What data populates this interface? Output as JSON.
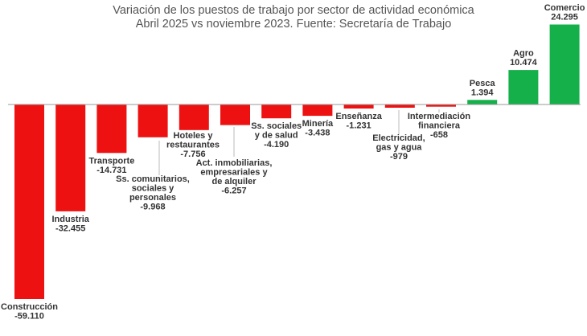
{
  "chart_data": {
    "type": "bar",
    "title": "Variación de los puestos de trabajo por sector de actividad económica",
    "subtitle": "Abril 2025 vs noviembre 2023. Fuente: Secretaría de Trabajo",
    "categories": [
      "Construcción",
      "Industria",
      "Transporte",
      "Ss. comunitarios, sociales y personales",
      "Hoteles y restaurantes",
      "Act. inmobiliarias, empresariales y de alquiler",
      "Ss. sociales y de salud",
      "Minería",
      "Enseñanza",
      "Electricidad, gas y agua",
      "Intermediación financiera",
      "Pesca",
      "Agro",
      "Comercio"
    ],
    "values": [
      -59110,
      -32455,
      -14731,
      -9968,
      -7756,
      -6257,
      -4190,
      -3438,
      -1231,
      -979,
      -658,
      1394,
      10474,
      24295
    ],
    "value_labels": [
      "-59.110",
      "-32.455",
      "-14.731",
      "-9.968",
      "-7.756",
      "-6.257",
      "-4.190",
      "-3.438",
      "-1.231",
      "-979",
      "-658",
      "1.394",
      "10.474",
      "24.295"
    ],
    "label_lines": [
      [
        "Construcción"
      ],
      [
        "Industria"
      ],
      [
        "Transporte"
      ],
      [
        "Ss. comunitarios,",
        "sociales y",
        "personales"
      ],
      [
        "Hoteles y",
        "restaurantes"
      ],
      [
        "Act. inmobiliarias,",
        "empresariales y",
        "de alquiler"
      ],
      [
        "Ss. sociales",
        "y de salud"
      ],
      [
        "Minería"
      ],
      [
        "Enseñanza"
      ],
      [
        "Electricidad,",
        "gas y agua"
      ],
      [
        "Intermediación",
        "financiera"
      ],
      [
        "Pesca"
      ],
      [
        "Agro"
      ],
      [
        "Comercio"
      ]
    ],
    "colors": {
      "negative": "#ee1111",
      "positive": "#16b04b",
      "axis": "#999999",
      "leader": "#bbbbbb"
    },
    "ylim": [
      -59110,
      24295
    ],
    "grid": false,
    "legend": "none"
  }
}
